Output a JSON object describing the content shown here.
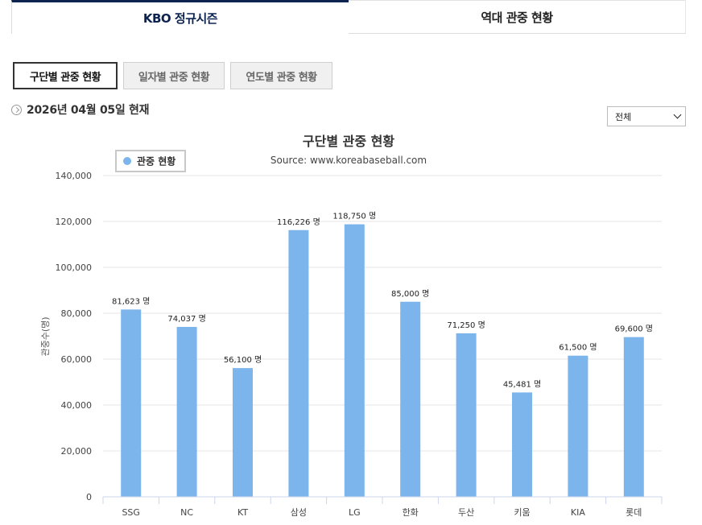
{
  "top_tabs": [
    {
      "label": "KBO 정규시즌",
      "active": true
    },
    {
      "label": "역대 관중 현황",
      "active": false
    }
  ],
  "sub_tabs": [
    {
      "label": "구단별 관중 현황",
      "active": true
    },
    {
      "label": "일자별 관중 현황",
      "active": false
    },
    {
      "label": "연도별 관중 현황",
      "active": false
    }
  ],
  "date_text": "2026년 04월 05일 현재",
  "filter": {
    "selected": "전체"
  },
  "colors": {
    "bar": "#7cb5ec",
    "accent": "#0c2350",
    "grid": "#e6e6e6"
  },
  "chart_data": {
    "type": "bar",
    "title": "구단별 관중 현황",
    "subtitle": "Source: www.koreabaseball.com",
    "ylabel": "관중수(명)",
    "xlabel": "",
    "legend": {
      "name": "관중 현황",
      "placement": "top-left"
    },
    "categories": [
      "SSG",
      "NC",
      "KT",
      "삼성",
      "LG",
      "한화",
      "두산",
      "키움",
      "KIA",
      "롯데"
    ],
    "values": [
      81623,
      74037,
      56100,
      116226,
      118750,
      85000,
      71250,
      45481,
      61500,
      69600
    ],
    "data_labels": [
      "81,623 명",
      "74,037 명",
      "56,100 명",
      "116,226 명",
      "118,750 명",
      "85,000 명",
      "71,250 명",
      "45,481 명",
      "61,500 명",
      "69,600 명"
    ],
    "ylim": [
      0,
      140000
    ],
    "yticks": [
      0,
      20000,
      40000,
      60000,
      80000,
      100000,
      120000,
      140000
    ],
    "ytick_labels": [
      "0",
      "20,000",
      "40,000",
      "60,000",
      "80,000",
      "100,000",
      "120,000",
      "140,000"
    ],
    "grid": true
  }
}
